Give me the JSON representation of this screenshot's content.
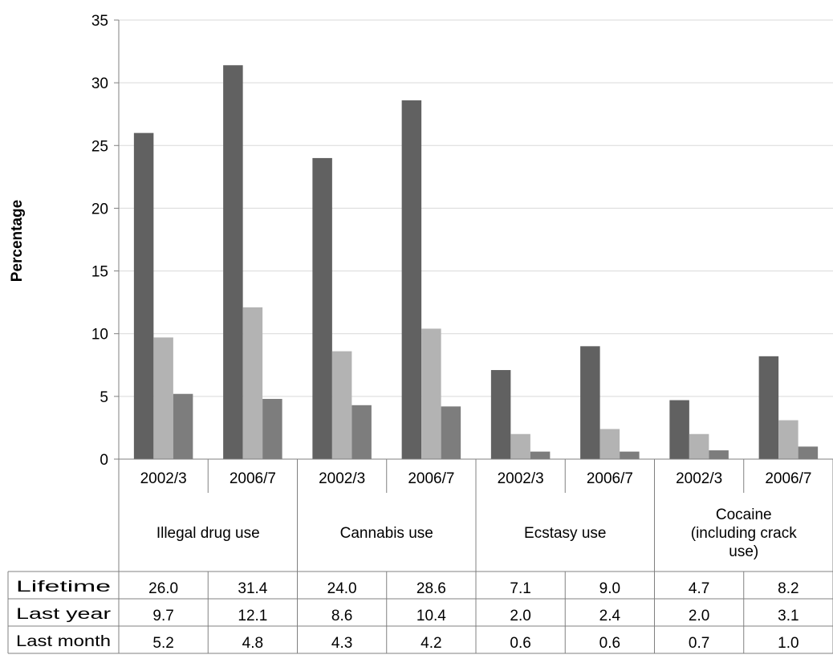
{
  "chart_data": {
    "type": "bar",
    "ylabel": "Percentage",
    "ylim": [
      0,
      35
    ],
    "yticks": [
      0,
      5,
      10,
      15,
      20,
      25,
      30,
      35
    ],
    "grid": true,
    "legend": "data table below chart",
    "groups": [
      "Illegal drug use",
      "Cannabis use",
      "Ecstasy use",
      "Cocaine (including crack use)"
    ],
    "group_lines": [
      [
        "Illegal drug use"
      ],
      [
        "Cannabis use"
      ],
      [
        "Ecstasy use"
      ],
      [
        "Cocaine",
        "(including crack",
        "use)"
      ]
    ],
    "categories": [
      "2002/3",
      "2006/7",
      "2002/3",
      "2006/7",
      "2002/3",
      "2006/7",
      "2002/3",
      "2006/7"
    ],
    "series": [
      {
        "name": "Lifetime",
        "color": "#616161",
        "values": [
          26.0,
          31.4,
          24.0,
          28.6,
          7.1,
          9.0,
          4.7,
          8.2
        ],
        "labels": [
          "26.0",
          "31.4",
          "24.0",
          "28.6",
          "7.1",
          "9.0",
          "4.7",
          "8.2"
        ]
      },
      {
        "name": "Last year",
        "color": "#b3b3b3",
        "values": [
          9.7,
          12.1,
          8.6,
          10.4,
          2.0,
          2.4,
          2.0,
          3.1
        ],
        "labels": [
          "9.7",
          "12.1",
          "8.6",
          "10.4",
          "2.0",
          "2.4",
          "2.0",
          "3.1"
        ]
      },
      {
        "name": "Last month",
        "color": "#7d7d7d",
        "values": [
          5.2,
          4.8,
          4.3,
          4.2,
          0.6,
          0.6,
          0.7,
          1.0
        ],
        "labels": [
          "5.2",
          "4.8",
          "4.3",
          "4.2",
          "0.6",
          "0.6",
          "0.7",
          "1.0"
        ]
      }
    ]
  }
}
